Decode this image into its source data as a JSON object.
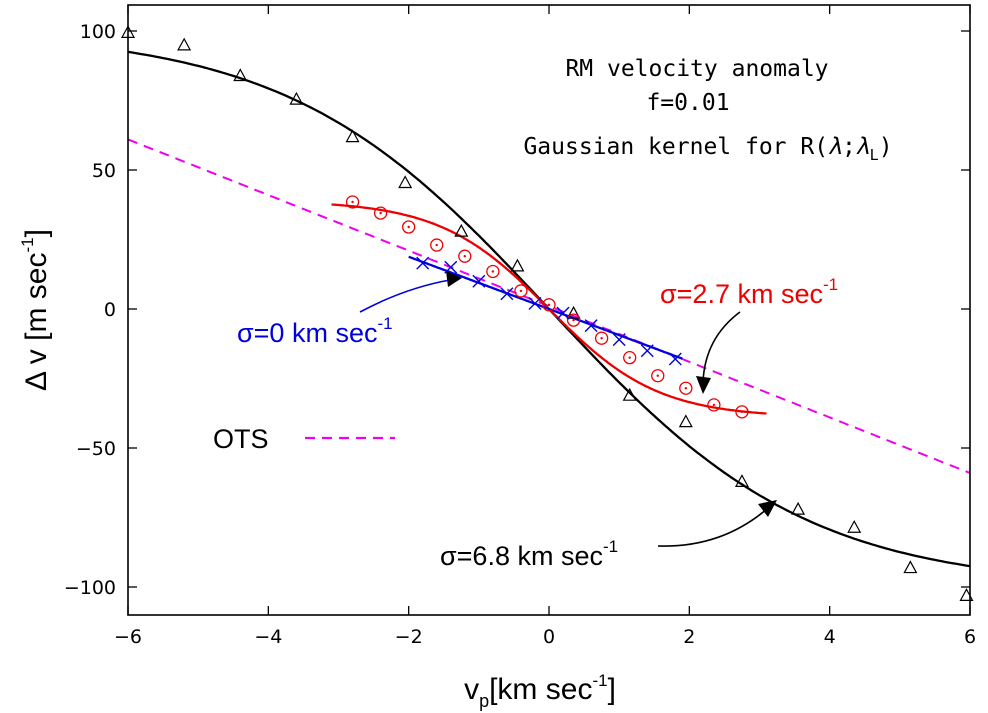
{
  "chart_data": {
    "type": "line",
    "xlabel": "v",
    "xlabel_sub": "p",
    "xlabel_unit_pre": "[km sec",
    "xlabel_unit_sup": "-1",
    "xlabel_unit_post": "]",
    "ylabel": "Δ v [m sec",
    "ylabel_sup": "-1",
    "ylabel_post": "]",
    "xlim": [
      -6,
      6
    ],
    "ylim": [
      -110,
      110
    ],
    "xticks": [
      -6,
      -4,
      -2,
      0,
      2,
      4,
      6
    ],
    "yticks": [
      100,
      50,
      0,
      -50,
      -100
    ],
    "xtick_labels": [
      "−6",
      "−4",
      "−2",
      "0",
      "2",
      "4",
      "6"
    ],
    "ytick_labels": [
      "100",
      "50",
      "0",
      "−50",
      "−100"
    ],
    "annotation": {
      "line1": "RM velocity anomaly",
      "line2": "f=0.01",
      "line3_pre": "Gaussian kernel for R(",
      "line3_lambda": "λ",
      "line3_sep": ";",
      "line3_lambdaL": "λ",
      "line3_subL": "L",
      "line3_post": ")"
    },
    "legend": {
      "label": "OTS",
      "position": "left-middle"
    },
    "series": [
      {
        "name": "σ=6.8 km sec",
        "label_main": "σ=6.8 km sec",
        "label_sup": "-1",
        "color": "#000000",
        "curve": {
          "amplitude": 100,
          "x_scale": 3.7
        },
        "points": [
          [
            -6.0,
            99.5
          ],
          [
            -5.2,
            95
          ],
          [
            -4.4,
            84
          ],
          [
            -3.6,
            75.5
          ],
          [
            -2.8,
            62
          ],
          [
            -2.05,
            45.5
          ],
          [
            -1.25,
            28
          ],
          [
            -0.45,
            15.5
          ],
          [
            0.35,
            -1.5
          ],
          [
            1.15,
            -31
          ],
          [
            1.95,
            -40.5
          ],
          [
            2.75,
            -62
          ],
          [
            3.55,
            -72
          ],
          [
            4.35,
            -78.5
          ],
          [
            5.15,
            -93
          ],
          [
            5.95,
            -103
          ]
        ],
        "marker": "triangle"
      },
      {
        "name": "σ=2.7 km sec",
        "label_main": "σ=2.7 km sec",
        "label_sup": "-1",
        "color": "#ee0000",
        "curve": {
          "amplitude": 39,
          "x_scale": 1.55,
          "xrange": [
            -3.1,
            3.1
          ]
        },
        "points": [
          [
            -2.8,
            38.5
          ],
          [
            -2.4,
            34.5
          ],
          [
            -2.0,
            29.5
          ],
          [
            -1.6,
            23
          ],
          [
            -1.2,
            19
          ],
          [
            -0.8,
            13.5
          ],
          [
            -0.4,
            6.5
          ],
          [
            0.0,
            1.5
          ],
          [
            0.35,
            -4
          ],
          [
            0.75,
            -10.5
          ],
          [
            1.15,
            -17.5
          ],
          [
            1.55,
            -24
          ],
          [
            1.95,
            -28.5
          ],
          [
            2.35,
            -34.5
          ],
          [
            2.75,
            -37
          ]
        ],
        "marker": "circle-dot"
      },
      {
        "name": "σ=0 km sec",
        "label_main": "σ=0 km sec",
        "label_sup": "-1",
        "color": "#0000dd",
        "curve": {
          "slope": -9.4,
          "xrange": [
            -2.0,
            1.9
          ]
        },
        "points": [
          [
            -1.8,
            16.5
          ],
          [
            -1.4,
            15
          ],
          [
            -1.0,
            10
          ],
          [
            -0.6,
            5.5
          ],
          [
            -0.2,
            2
          ],
          [
            0.2,
            -1.5
          ],
          [
            0.6,
            -6
          ],
          [
            1.0,
            -11
          ],
          [
            1.4,
            -15
          ],
          [
            1.8,
            -18
          ]
        ],
        "marker": "cross"
      },
      {
        "name": "OTS",
        "color": "#ee00ee",
        "dashed": true,
        "curve": {
          "slope": -10,
          "intercept": 1
        },
        "points": []
      }
    ]
  }
}
